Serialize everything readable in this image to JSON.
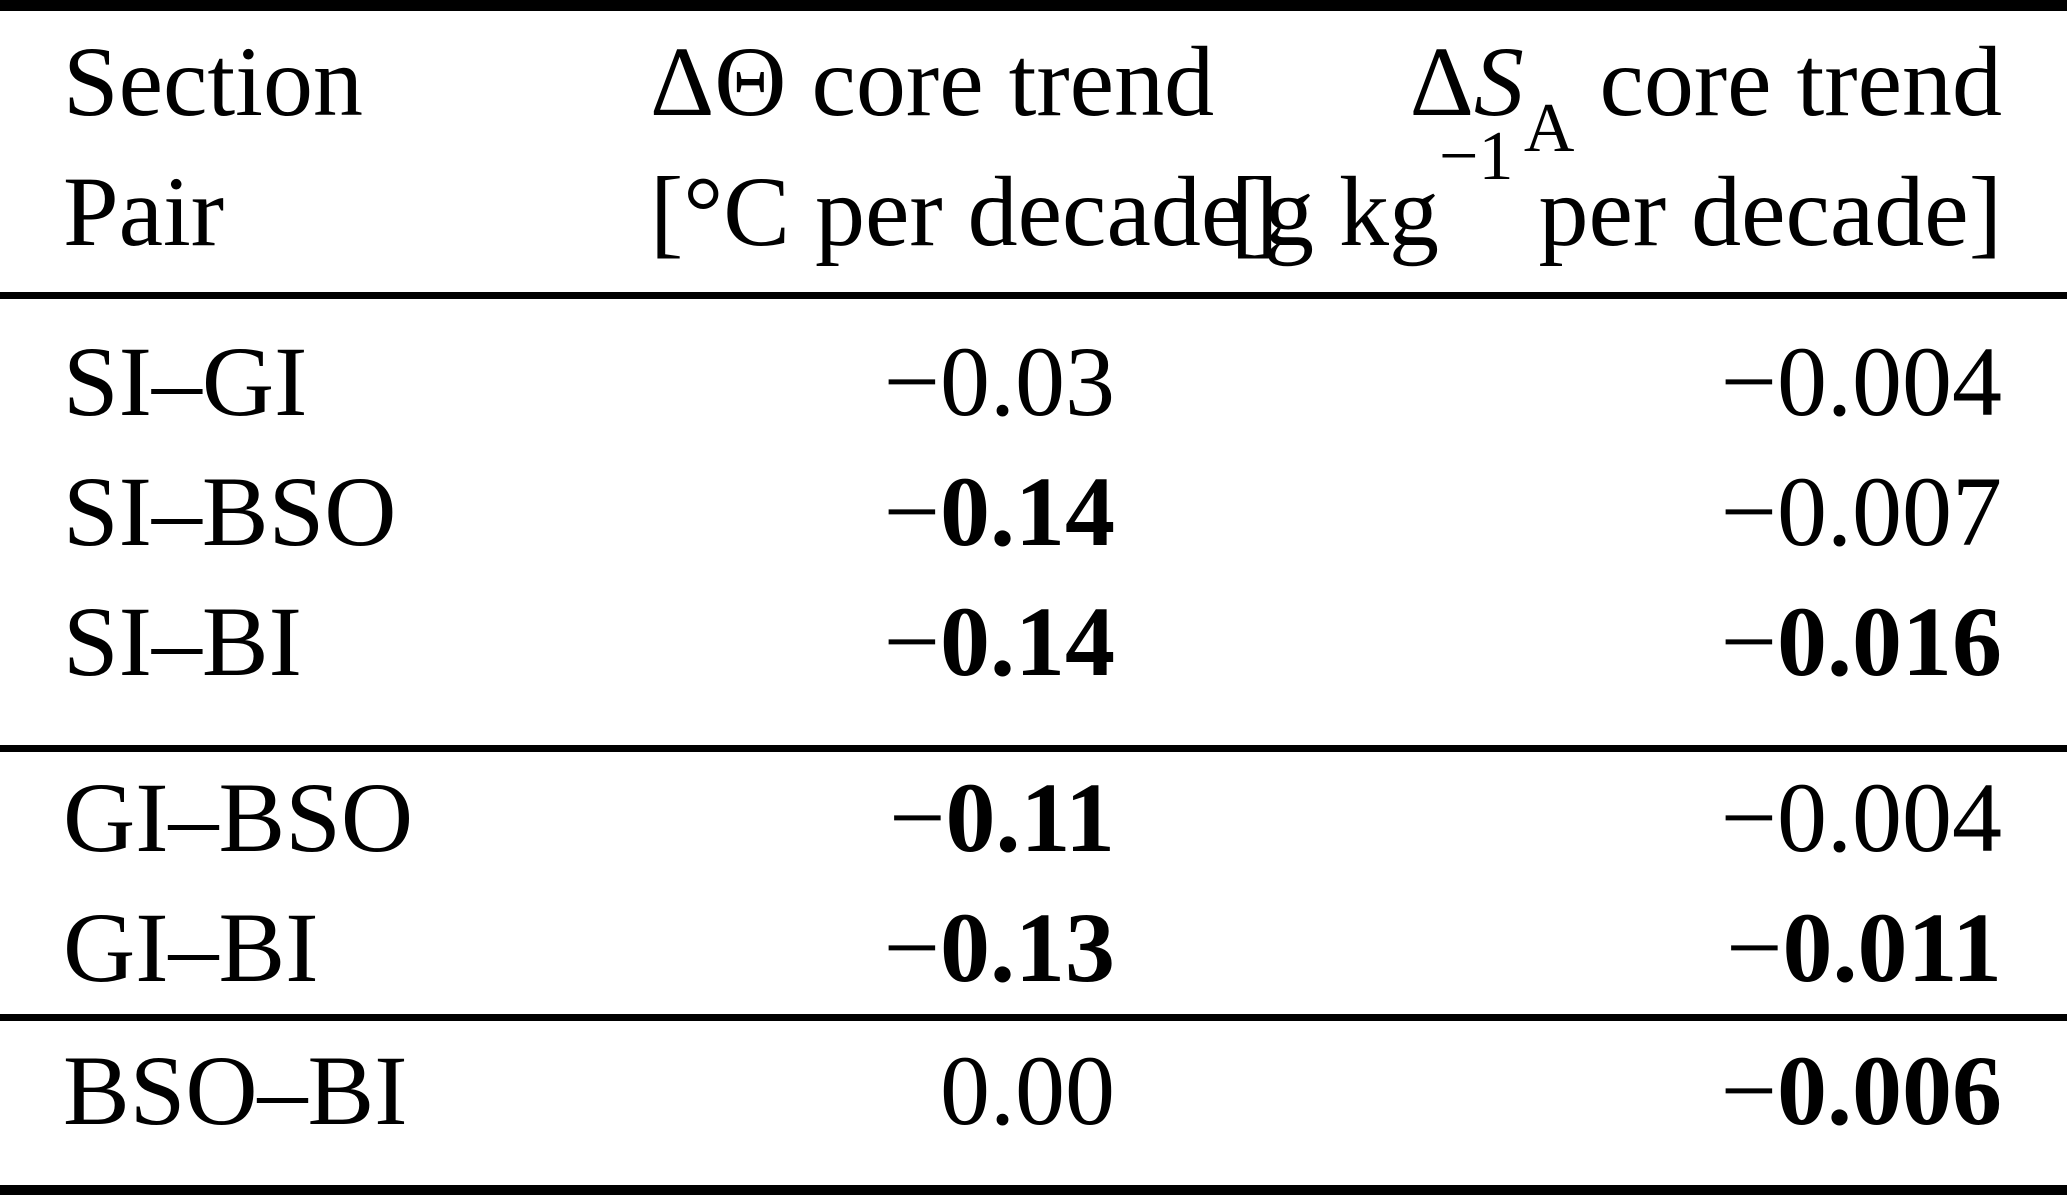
{
  "page": {
    "background": "#ffffff",
    "text_color": "#000000",
    "rule_color": "#000000"
  },
  "header": {
    "col1_line1": "Section",
    "col1_line2": "Pair",
    "col2_line1": "ΔΘ core trend",
    "col2_line2": "[°C per decade]",
    "col3_line1_delta": "Δ",
    "col3_line1_symbol": "S",
    "col3_line1_sub": "A",
    "col3_line1_rest": " core trend",
    "col3_line2_pre": "[g kg",
    "col3_line2_sup": "−1",
    "col3_line2_post": " per decade]"
  },
  "sections": [
    {
      "rows": [
        {
          "pair": "SI–GI",
          "theta": {
            "sign": "−",
            "value": "0.03",
            "bold": false
          },
          "sa": {
            "sign": "−",
            "value": "0.004",
            "bold": false
          }
        },
        {
          "pair": "SI–BSO",
          "theta": {
            "sign": "−",
            "value": "0.14",
            "bold": true
          },
          "sa": {
            "sign": "−",
            "value": "0.007",
            "bold": false
          }
        },
        {
          "pair": "SI–BI",
          "theta": {
            "sign": "−",
            "value": "0.14",
            "bold": true
          },
          "sa": {
            "sign": "−",
            "value": "0.016",
            "bold": true
          }
        }
      ]
    },
    {
      "rows": [
        {
          "pair": "GI–BSO",
          "theta": {
            "sign": "−",
            "value": "0.11",
            "bold": true
          },
          "sa": {
            "sign": "−",
            "value": "0.004",
            "bold": false
          }
        },
        {
          "pair": "GI–BI",
          "theta": {
            "sign": "−",
            "value": "0.13",
            "bold": true
          },
          "sa": {
            "sign": "−",
            "value": "0.011",
            "bold": true
          }
        }
      ]
    },
    {
      "rows": [
        {
          "pair": "BSO–BI",
          "theta": {
            "sign": "",
            "value": "0.00",
            "bold": false
          },
          "sa": {
            "sign": "−",
            "value": "0.006",
            "bold": true
          }
        }
      ]
    }
  ]
}
